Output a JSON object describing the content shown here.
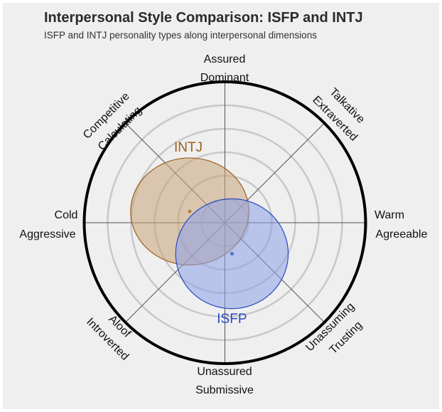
{
  "title": "Interpersonal Style Comparison: ISFP and INTJ",
  "subtitle": "ISFP and INTJ personality types along interpersonal dimensions",
  "chart_data": {
    "type": "scatter",
    "title": "Interpersonal Style Comparison: ISFP and INTJ",
    "subtitle": "ISFP and INTJ personality types along interpersonal dimensions",
    "axis_labels": {
      "top": [
        "Assured",
        "Dominant"
      ],
      "top_right": [
        "Talkative",
        "Extraverted"
      ],
      "right": [
        "Warm",
        "Agreeable"
      ],
      "bottom_right": [
        "Unassuming",
        "Trusting"
      ],
      "bottom": [
        "Unassured",
        "Submissive"
      ],
      "bottom_left": [
        "Aloof",
        "Introverted"
      ],
      "left": [
        "Cold",
        "Aggressive"
      ],
      "top_left": [
        "Competitive",
        "Calculating"
      ]
    },
    "range": [
      -1,
      1
    ],
    "rings": 5,
    "series": [
      {
        "name": "INTJ",
        "x": -0.25,
        "y": 0.08,
        "rx": 0.42,
        "ry": 0.38,
        "color": "#9c5f1c",
        "fill": "#c9a47a"
      },
      {
        "name": "ISFP",
        "x": 0.05,
        "y": -0.22,
        "rx": 0.4,
        "ry": 0.39,
        "color": "#2a49c4",
        "fill": "#8da0e8"
      }
    ]
  }
}
